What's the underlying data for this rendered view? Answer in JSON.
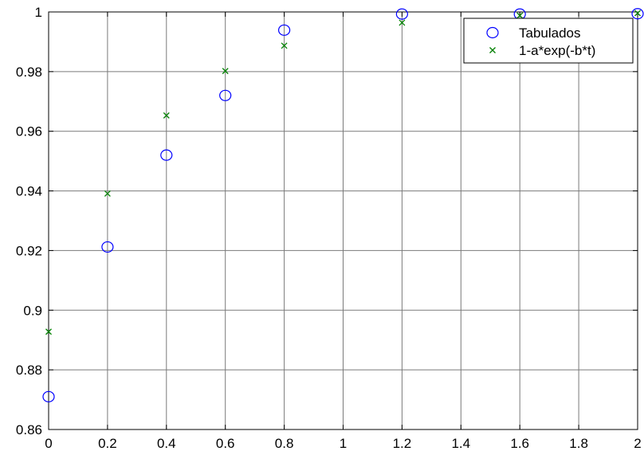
{
  "chart_data": {
    "type": "scatter",
    "xlim": [
      0,
      2
    ],
    "ylim": [
      0.86,
      1
    ],
    "x_ticks": [
      "0",
      "0.2",
      "0.4",
      "0.6",
      "0.8",
      "1",
      "1.2",
      "1.4",
      "1.6",
      "1.8",
      "2"
    ],
    "x_tick_values": [
      0,
      0.2,
      0.4,
      0.6,
      0.8,
      1,
      1.2,
      1.4,
      1.6,
      1.8,
      2
    ],
    "y_ticks": [
      "0.86",
      "0.88",
      "0.9",
      "0.92",
      "0.94",
      "0.96",
      "0.98",
      "1"
    ],
    "y_tick_values": [
      0.86,
      0.88,
      0.9,
      0.92,
      0.94,
      0.96,
      0.98,
      1
    ],
    "grid": true,
    "legend_position": "top-right",
    "series": [
      {
        "name": "Tabulados",
        "marker": "circle",
        "color": "#0000ff",
        "points": [
          [
            0,
            0.871
          ],
          [
            0.2,
            0.9212
          ],
          [
            0.4,
            0.952
          ],
          [
            0.6,
            0.972
          ],
          [
            0.8,
            0.9939
          ],
          [
            1.2,
            0.9993
          ],
          [
            1.6,
            0.9993
          ],
          [
            2,
            0.9994
          ]
        ]
      },
      {
        "name": "1-a*exp(-b*t)",
        "marker": "x",
        "color": "#008000",
        "points": [
          [
            0,
            0.8928
          ],
          [
            0.2,
            0.9391
          ],
          [
            0.4,
            0.9653
          ],
          [
            0.6,
            0.9802
          ],
          [
            0.8,
            0.9887
          ],
          [
            1.2,
            0.9964
          ],
          [
            1.6,
            0.9988
          ],
          [
            2,
            0.9996
          ]
        ]
      }
    ]
  }
}
